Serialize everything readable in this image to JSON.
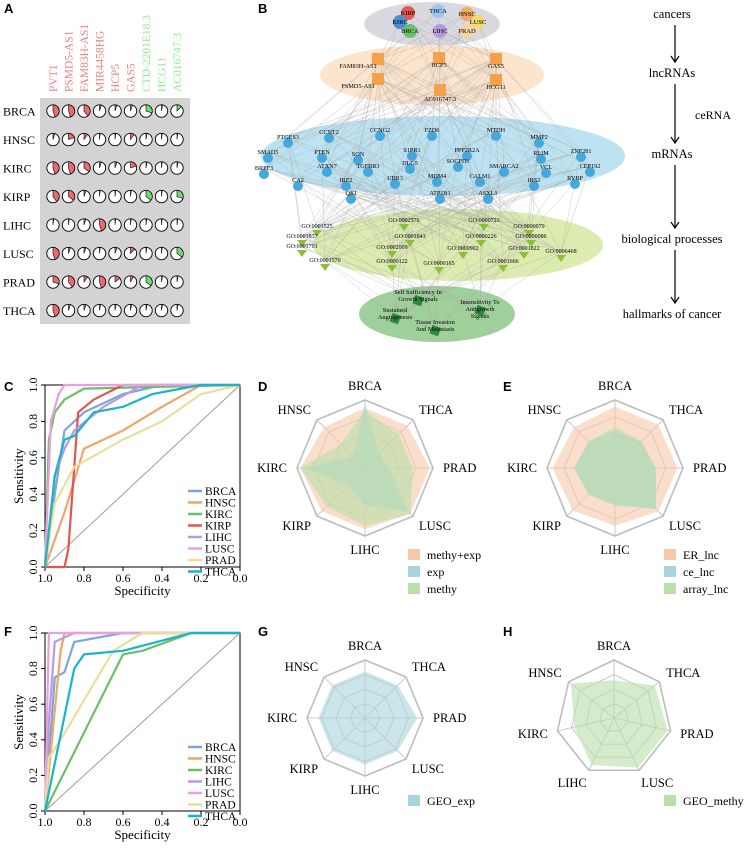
{
  "panels": {
    "A": "A",
    "B": "B",
    "C": "C",
    "D": "D",
    "E": "E",
    "F": "F",
    "G": "G",
    "H": "H"
  },
  "colors": {
    "pie_red": "#ee6a6a",
    "pie_green": "#6fdc6f",
    "panelA_bg": "#d3d3d3",
    "lnc_red": "#f08080",
    "lnc_green": "#90ee90"
  },
  "panelA": {
    "lncrnas": [
      {
        "name": "PVT1",
        "color": "#f08080"
      },
      {
        "name": "PSMD5-AS1",
        "color": "#f08080"
      },
      {
        "name": "FAM83H-AS1",
        "color": "#f08080"
      },
      {
        "name": "MIR4458HG",
        "color": "#f08080"
      },
      {
        "name": "HCP5",
        "color": "#f08080"
      },
      {
        "name": "GAS5",
        "color": "#f08080"
      },
      {
        "name": "CTD-2201E18.3",
        "color": "#90ee90"
      },
      {
        "name": "HCG11",
        "color": "#90ee90"
      },
      {
        "name": "AC016747.3",
        "color": "#90ee90"
      }
    ],
    "cancers": [
      "BRCA",
      "HNSC",
      "KIRC",
      "KIRP",
      "LIHC",
      "LUSC",
      "PRAD",
      "THCA"
    ],
    "pie_fractions": [
      [
        0.45,
        0.45,
        0.4,
        0.05,
        0.05,
        0.05,
        0.3,
        0.03,
        0.12
      ],
      [
        0.05,
        0.2,
        0.1,
        0.02,
        0.02,
        0.1,
        0.03,
        0.02,
        0.02
      ],
      [
        0.45,
        0.45,
        0.35,
        0.05,
        0.05,
        0.2,
        0.03,
        0.02,
        0.03
      ],
      [
        0.4,
        0.35,
        0.05,
        0.02,
        0.02,
        0.02,
        0.35,
        0.02,
        0.3
      ],
      [
        0.02,
        0.02,
        0.05,
        0.45,
        0.02,
        0.02,
        0.02,
        0.02,
        0.02
      ],
      [
        0.45,
        0.05,
        0.05,
        0.02,
        0.05,
        0.12,
        0.02,
        0.02,
        0.35
      ],
      [
        0.3,
        0.4,
        0.1,
        0.45,
        0.15,
        0.08,
        0.35,
        0.03,
        0.03
      ],
      [
        0.45,
        0.05,
        0.05,
        0.03,
        0.03,
        0.03,
        0.03,
        0.03,
        0.03
      ]
    ],
    "pie_green_columns": [
      6,
      7,
      8
    ]
  },
  "panelB": {
    "cancers": [
      "KIRP",
      "THCA",
      "HNSC",
      "LUSC",
      "KIRC",
      "BRCA",
      "LIHC",
      "PRAD"
    ],
    "lncrnas": [
      "FAM83H-AS1",
      "HCP5",
      "GAS5",
      "PSMD5-AS1",
      "AC016747.3",
      "HCG11"
    ],
    "mrnas": [
      "PTGES3",
      "CCNT2",
      "CCNG2",
      "FZD6",
      "MTDH",
      "MMP2",
      "SMAD5",
      "PTEN",
      "SON",
      "S1PR1",
      "PPP2R2A",
      "RLIM",
      "ZNF281",
      "BRPF3",
      "ATXN7",
      "TGFBR3",
      "DLG5",
      "SOCPD1",
      "SMARCA2",
      "VCL",
      "CEP192",
      "CA2",
      "IRF2",
      "UBR3",
      "MDM4",
      "CALM1",
      "IRS2",
      "RYBP",
      "QKI",
      "ATP1B1",
      "ASXL1"
    ],
    "go_terms": [
      "GO:0001525",
      "GO:0002576",
      "GO:0000723",
      "GO:0000079",
      "GO:0001837",
      "GO:0001843",
      "GO:0000226",
      "GO:0000086",
      "GO:0001701",
      "GO:0002009",
      "GO:0000902",
      "GO:0001822",
      "GO:0006468",
      "GO:0001570",
      "GO:0000122",
      "GO:0000165",
      "GO:0001666"
    ],
    "hallmarks": [
      "Self Sufficiency In Growth Signals",
      "Sustained Angiogenesis",
      "Insensitivity To Antigrowth Signals",
      "Tissue Invasion And Metastasis"
    ],
    "flow": [
      "cancers",
      "lncRNAs",
      "mRNAs",
      "biological processes",
      "hallmarks of cancer"
    ],
    "flow_edge_label": "ceRNA"
  },
  "roc_common": {
    "xlabel": "Specificity",
    "ylabel": "Sensitivity",
    "xticks": [
      "1.0",
      "0.8",
      "0.6",
      "0.4",
      "0.2",
      "0.0"
    ],
    "yticks": [
      "0.0",
      "0.2",
      "0.4",
      "0.6",
      "0.8",
      "1.0"
    ]
  },
  "radar_common": {
    "axes": [
      "BRCA",
      "THCA",
      "PRAD",
      "LUSC",
      "LIHC",
      "KIRP",
      "KIRC",
      "HNSC"
    ]
  },
  "chart_data": [
    {
      "panel": "C",
      "type": "line",
      "xlabel": "Specificity",
      "ylabel": "Sensitivity",
      "xlim": [
        1.0,
        0.0
      ],
      "ylim": [
        0.0,
        1.0
      ],
      "legend": "bottom-right",
      "series": [
        {
          "name": "BRCA",
          "color": "#7aa6d8",
          "x": [
            1,
            0.95,
            0.9,
            0.85,
            0.8,
            0.6,
            0.4,
            0.0
          ],
          "y": [
            0,
            0.4,
            0.75,
            0.8,
            0.85,
            0.95,
            1,
            1
          ]
        },
        {
          "name": "HNSC",
          "color": "#f2a56a",
          "x": [
            1,
            0.9,
            0.8,
            0.6,
            0.4,
            0.2,
            0.0
          ],
          "y": [
            0,
            0.3,
            0.65,
            0.75,
            0.88,
            1,
            1
          ]
        },
        {
          "name": "KIRC",
          "color": "#6cbf6c",
          "x": [
            1,
            0.98,
            0.95,
            0.9,
            0.8,
            0.0
          ],
          "y": [
            0,
            0.7,
            0.85,
            0.92,
            0.98,
            1
          ]
        },
        {
          "name": "KIRP",
          "color": "#e0554f",
          "x": [
            1,
            0.9,
            0.88,
            0.83,
            0.75,
            0.6,
            0.0
          ],
          "y": [
            0,
            0,
            0.1,
            0.85,
            0.92,
            1,
            1
          ]
        },
        {
          "name": "LIHC",
          "color": "#b89be0",
          "x": [
            1,
            0.95,
            0.9,
            0.85,
            0.7,
            0.5,
            0.0
          ],
          "y": [
            0,
            0.5,
            0.65,
            0.75,
            0.88,
            1,
            1
          ]
        },
        {
          "name": "LUSC",
          "color": "#e8a0e0",
          "x": [
            1,
            0.97,
            0.93,
            0.9,
            0.0
          ],
          "y": [
            0,
            0.8,
            0.95,
            1,
            1
          ]
        },
        {
          "name": "PRAD",
          "color": "#e6e09a",
          "x": [
            1,
            0.95,
            0.85,
            0.6,
            0.4,
            0.2,
            0.0
          ],
          "y": [
            0,
            0.35,
            0.55,
            0.7,
            0.8,
            0.95,
            1
          ]
        },
        {
          "name": "THCA",
          "color": "#18b4c8",
          "x": [
            1,
            0.95,
            0.9,
            0.85,
            0.75,
            0.6,
            0.45,
            0.2,
            0.0
          ],
          "y": [
            0,
            0.5,
            0.7,
            0.72,
            0.85,
            0.88,
            0.95,
            1,
            1
          ]
        }
      ]
    },
    {
      "panel": "D",
      "type": "radar",
      "axes": [
        "BRCA",
        "THCA",
        "PRAD",
        "LUSC",
        "LIHC",
        "KIRP",
        "KIRC",
        "HNSC"
      ],
      "rmax": 1.0,
      "legend": "bottom-right",
      "series": [
        {
          "name": "methy+exp",
          "color": "#f5c8a8",
          "values": [
            0.88,
            0.88,
            0.95,
            0.95,
            0.9,
            0.9,
            0.95,
            0.85
          ]
        },
        {
          "name": "exp",
          "color": "#a8d4dc",
          "values": [
            0.95,
            0.3,
            0.35,
            0.9,
            0.55,
            0.35,
            0.9,
            0.25
          ]
        },
        {
          "name": "methy",
          "color": "#b8e0a8",
          "values": [
            0.85,
            0.7,
            0.7,
            0.95,
            0.85,
            0.8,
            0.95,
            0.5
          ]
        }
      ]
    },
    {
      "panel": "E",
      "type": "radar",
      "axes": [
        "BRCA",
        "THCA",
        "PRAD",
        "LUSC",
        "LIHC",
        "KIRP",
        "KIRC",
        "HNSC"
      ],
      "rmax": 1.0,
      "legend": "bottom-right",
      "series": [
        {
          "name": "ER_lnc",
          "color": "#f5c8a8",
          "values": [
            0.9,
            0.9,
            0.92,
            0.9,
            0.85,
            0.88,
            0.92,
            0.85
          ]
        },
        {
          "name": "ce_lnc",
          "color": "#a8d4dc",
          "values": [
            0.55,
            0.55,
            0.6,
            0.85,
            0.55,
            0.55,
            0.6,
            0.55
          ]
        },
        {
          "name": "array_lnc",
          "color": "#b8e0a8",
          "values": [
            0.6,
            0.55,
            0.6,
            0.85,
            0.55,
            0.55,
            0.6,
            0.55
          ]
        }
      ]
    },
    {
      "panel": "F",
      "type": "line",
      "xlabel": "Specificity",
      "ylabel": "Sensitivity",
      "xlim": [
        1.0,
        0.0
      ],
      "ylim": [
        0.0,
        1.0
      ],
      "legend": "bottom-right",
      "series": [
        {
          "name": "BRCA",
          "color": "#7aa6d8",
          "x": [
            1,
            0.95,
            0.9,
            0.85,
            0.6,
            0.0
          ],
          "y": [
            0,
            0.75,
            0.78,
            0.95,
            1,
            1
          ]
        },
        {
          "name": "HNSC",
          "color": "#f2a56a",
          "x": [
            1,
            0.92,
            0.9,
            0.0
          ],
          "y": [
            0,
            0.9,
            1,
            1
          ]
        },
        {
          "name": "KIRC",
          "color": "#6cbf6c",
          "x": [
            1,
            0.6,
            0.5,
            0.25,
            0.0
          ],
          "y": [
            0,
            0.88,
            0.9,
            1,
            1
          ]
        },
        {
          "name": "LIHC",
          "color": "#b89be0",
          "x": [
            1,
            0.98,
            0.95,
            0.85,
            0.0
          ],
          "y": [
            0,
            0.5,
            0.95,
            1,
            1
          ]
        },
        {
          "name": "LUSC",
          "color": "#e8a0e0",
          "x": [
            1,
            0.98,
            0.0
          ],
          "y": [
            0,
            1,
            1
          ]
        },
        {
          "name": "PRAD",
          "color": "#e6e09a",
          "x": [
            1,
            0.98,
            0.92,
            0.65,
            0.5,
            0.0
          ],
          "y": [
            0,
            0.3,
            0.4,
            0.9,
            1,
            1
          ]
        },
        {
          "name": "THCA",
          "color": "#18b4c8",
          "x": [
            1,
            0.85,
            0.8,
            0.6,
            0.25,
            0.0
          ],
          "y": [
            0,
            0.8,
            0.88,
            0.9,
            1,
            1
          ]
        }
      ]
    },
    {
      "panel": "G",
      "type": "radar",
      "axes": [
        "BRCA",
        "THCA",
        "PRAD",
        "LUSC",
        "LIHC",
        "KIRP",
        "KIRC",
        "HNSC"
      ],
      "rmax": 1.0,
      "legend": "bottom-right",
      "series": [
        {
          "name": "GEO_exp",
          "color": "#a8d4dc",
          "values": [
            0.8,
            0.8,
            0.9,
            0.8,
            0.8,
            0.8,
            0.8,
            0.8
          ]
        }
      ]
    },
    {
      "panel": "H",
      "type": "radar",
      "axes": [
        "BRCA",
        "THCA",
        "PRAD",
        "LUSC",
        "LIHC",
        "KIRC",
        "HNSC"
      ],
      "rmax": 1.0,
      "legend": "bottom-right",
      "series": [
        {
          "name": "GEO_methy",
          "color": "#b8e0a8",
          "values": [
            0.65,
            0.9,
            0.95,
            0.95,
            0.9,
            0.7,
            0.95
          ]
        }
      ]
    }
  ]
}
